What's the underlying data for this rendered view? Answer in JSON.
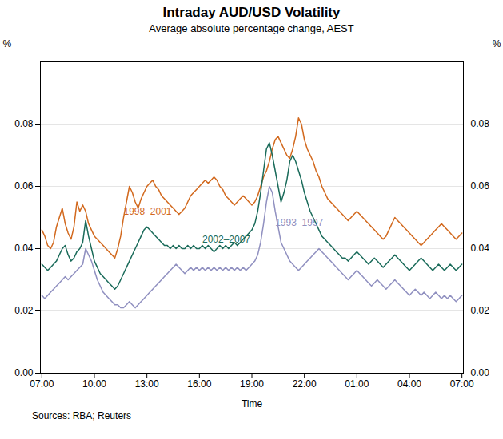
{
  "chart_data": {
    "type": "line",
    "title": "Intraday AUD/USD Volatility",
    "subtitle": "Average absolute percentage change, AEST",
    "source": "Sources: RBA; Reuters",
    "x_label": "Time",
    "y_label": "%",
    "y2_label": "%",
    "categories": [
      "07:00",
      null,
      null,
      null,
      null,
      null,
      null,
      null,
      null,
      null,
      null,
      null,
      null,
      null,
      null,
      null,
      null,
      null,
      "10:00",
      null,
      null,
      null,
      null,
      null,
      null,
      null,
      null,
      null,
      null,
      null,
      null,
      null,
      null,
      null,
      null,
      null,
      "13:00",
      null,
      null,
      null,
      null,
      null,
      null,
      null,
      null,
      null,
      null,
      null,
      null,
      null,
      null,
      null,
      null,
      null,
      "16:00",
      null,
      null,
      null,
      null,
      null,
      null,
      null,
      null,
      null,
      null,
      null,
      null,
      null,
      null,
      null,
      null,
      null,
      "19:00",
      null,
      null,
      null,
      null,
      null,
      null,
      null,
      null,
      null,
      null,
      null,
      null,
      null,
      null,
      null,
      null,
      null,
      "22:00",
      null,
      null,
      null,
      null,
      null,
      null,
      null,
      null,
      null,
      null,
      null,
      null,
      null,
      null,
      null,
      null,
      null,
      "01:00",
      null,
      null,
      null,
      null,
      null,
      null,
      null,
      null,
      null,
      null,
      null,
      null,
      null,
      null,
      null,
      null,
      null,
      "04:00",
      null,
      null,
      null,
      null,
      null,
      null,
      null,
      null,
      null,
      null,
      null,
      null,
      null,
      null,
      null,
      null,
      null,
      "07:00"
    ],
    "ylim": [
      0.0,
      0.1
    ],
    "yticks": [
      {
        "value": 0,
        "label": "0.00"
      },
      0.02,
      0.04,
      0.06,
      0.08
    ],
    "y2lim": [
      0.0,
      0.1
    ],
    "y2ticks": [
      {
        "value": 0,
        "label": "0.00"
      },
      0.02,
      0.04,
      0.06,
      0.08
    ],
    "grid": true,
    "series": [
      {
        "name": "1998–2001",
        "color": "#d2691e",
        "values": [
          0.046,
          0.044,
          0.041,
          0.04,
          0.042,
          0.047,
          0.05,
          0.053,
          0.048,
          0.045,
          0.043,
          0.047,
          0.055,
          0.052,
          0.054,
          0.052,
          0.048,
          0.046,
          0.044,
          0.043,
          0.042,
          0.041,
          0.04,
          0.039,
          0.038,
          0.037,
          0.04,
          0.044,
          0.05,
          0.055,
          0.06,
          0.058,
          0.055,
          0.053,
          0.056,
          0.058,
          0.06,
          0.061,
          0.062,
          0.06,
          0.059,
          0.057,
          0.056,
          0.055,
          0.054,
          0.053,
          0.052,
          0.051,
          0.052,
          0.053,
          0.055,
          0.057,
          0.058,
          0.059,
          0.06,
          0.061,
          0.062,
          0.061,
          0.062,
          0.063,
          0.062,
          0.06,
          0.059,
          0.057,
          0.056,
          0.055,
          0.054,
          0.055,
          0.056,
          0.057,
          0.056,
          0.055,
          0.054,
          0.055,
          0.057,
          0.06,
          0.063,
          0.065,
          0.068,
          0.072,
          0.075,
          0.076,
          0.074,
          0.072,
          0.07,
          0.069,
          0.072,
          0.076,
          0.082,
          0.08,
          0.075,
          0.072,
          0.07,
          0.068,
          0.065,
          0.063,
          0.06,
          0.058,
          0.056,
          0.055,
          0.054,
          0.053,
          0.052,
          0.051,
          0.05,
          0.049,
          0.05,
          0.051,
          0.052,
          0.051,
          0.05,
          0.049,
          0.048,
          0.047,
          0.046,
          0.045,
          0.044,
          0.043,
          0.044,
          0.046,
          0.048,
          0.05,
          0.049,
          0.048,
          0.047,
          0.046,
          0.045,
          0.044,
          0.043,
          0.042,
          0.041,
          0.042,
          0.043,
          0.044,
          0.045,
          0.046,
          0.047,
          0.048,
          0.047,
          0.046,
          0.045,
          0.044,
          0.043,
          0.044,
          0.045
        ]
      },
      {
        "name": "2002–2007",
        "color": "#1a6b5a",
        "values": [
          0.035,
          0.034,
          0.033,
          0.034,
          0.035,
          0.036,
          0.038,
          0.04,
          0.041,
          0.038,
          0.036,
          0.037,
          0.039,
          0.04,
          0.042,
          0.049,
          0.044,
          0.04,
          0.036,
          0.034,
          0.032,
          0.031,
          0.03,
          0.029,
          0.028,
          0.027,
          0.028,
          0.03,
          0.032,
          0.034,
          0.036,
          0.038,
          0.04,
          0.042,
          0.044,
          0.046,
          0.047,
          0.046,
          0.045,
          0.044,
          0.043,
          0.042,
          0.041,
          0.041,
          0.04,
          0.041,
          0.04,
          0.041,
          0.04,
          0.04,
          0.041,
          0.04,
          0.041,
          0.04,
          0.04,
          0.041,
          0.04,
          0.041,
          0.04,
          0.039,
          0.04,
          0.041,
          0.04,
          0.041,
          0.04,
          0.041,
          0.042,
          0.041,
          0.042,
          0.043,
          0.044,
          0.045,
          0.046,
          0.048,
          0.052,
          0.058,
          0.065,
          0.072,
          0.074,
          0.07,
          0.065,
          0.06,
          0.055,
          0.058,
          0.062,
          0.068,
          0.07,
          0.068,
          0.065,
          0.062,
          0.058,
          0.055,
          0.052,
          0.05,
          0.048,
          0.046,
          0.044,
          0.043,
          0.042,
          0.041,
          0.04,
          0.039,
          0.038,
          0.037,
          0.037,
          0.036,
          0.037,
          0.038,
          0.039,
          0.038,
          0.037,
          0.036,
          0.035,
          0.036,
          0.037,
          0.036,
          0.035,
          0.034,
          0.035,
          0.036,
          0.037,
          0.038,
          0.037,
          0.036,
          0.035,
          0.034,
          0.033,
          0.034,
          0.035,
          0.036,
          0.037,
          0.036,
          0.035,
          0.034,
          0.033,
          0.034,
          0.035,
          0.034,
          0.033,
          0.034,
          0.035,
          0.034,
          0.033,
          0.034,
          0.035
        ]
      },
      {
        "name": "1993–1997",
        "color": "#9090c0",
        "values": [
          0.025,
          0.024,
          0.025,
          0.026,
          0.027,
          0.028,
          0.029,
          0.03,
          0.031,
          0.03,
          0.031,
          0.032,
          0.033,
          0.034,
          0.035,
          0.04,
          0.038,
          0.036,
          0.033,
          0.03,
          0.028,
          0.026,
          0.025,
          0.024,
          0.023,
          0.022,
          0.022,
          0.021,
          0.021,
          0.022,
          0.023,
          0.022,
          0.021,
          0.022,
          0.023,
          0.024,
          0.025,
          0.026,
          0.027,
          0.028,
          0.029,
          0.03,
          0.031,
          0.032,
          0.033,
          0.034,
          0.035,
          0.034,
          0.033,
          0.032,
          0.033,
          0.034,
          0.033,
          0.034,
          0.033,
          0.034,
          0.033,
          0.034,
          0.033,
          0.034,
          0.033,
          0.034,
          0.033,
          0.034,
          0.033,
          0.034,
          0.033,
          0.034,
          0.033,
          0.034,
          0.033,
          0.034,
          0.035,
          0.036,
          0.038,
          0.042,
          0.048,
          0.055,
          0.06,
          0.058,
          0.052,
          0.047,
          0.042,
          0.04,
          0.038,
          0.036,
          0.035,
          0.034,
          0.033,
          0.034,
          0.035,
          0.036,
          0.037,
          0.038,
          0.039,
          0.04,
          0.039,
          0.038,
          0.037,
          0.036,
          0.035,
          0.034,
          0.033,
          0.032,
          0.031,
          0.03,
          0.031,
          0.032,
          0.033,
          0.032,
          0.031,
          0.03,
          0.029,
          0.028,
          0.029,
          0.03,
          0.029,
          0.028,
          0.027,
          0.028,
          0.029,
          0.03,
          0.029,
          0.028,
          0.027,
          0.026,
          0.025,
          0.026,
          0.027,
          0.026,
          0.025,
          0.026,
          0.025,
          0.024,
          0.025,
          0.026,
          0.025,
          0.024,
          0.025,
          0.024,
          0.025,
          0.024,
          0.023,
          0.024,
          0.025
        ]
      }
    ]
  }
}
